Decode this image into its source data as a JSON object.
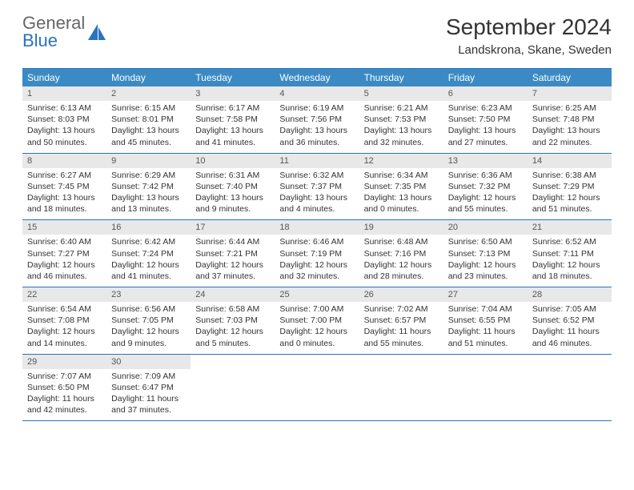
{
  "brand": {
    "line1": "General",
    "line2": "Blue"
  },
  "title": "September 2024",
  "location": "Landskrona, Skane, Sweden",
  "colors": {
    "header_bar": "#3b8ac4",
    "rule": "#2a72c0",
    "daynum_bg": "#e8e8e8",
    "text": "#333333",
    "brand_blue": "#2a72c0"
  },
  "days_of_week": [
    "Sunday",
    "Monday",
    "Tuesday",
    "Wednesday",
    "Thursday",
    "Friday",
    "Saturday"
  ],
  "weeks": [
    [
      {
        "n": "1",
        "sr": "Sunrise: 6:13 AM",
        "ss": "Sunset: 8:03 PM",
        "dl": "Daylight: 13 hours and 50 minutes."
      },
      {
        "n": "2",
        "sr": "Sunrise: 6:15 AM",
        "ss": "Sunset: 8:01 PM",
        "dl": "Daylight: 13 hours and 45 minutes."
      },
      {
        "n": "3",
        "sr": "Sunrise: 6:17 AM",
        "ss": "Sunset: 7:58 PM",
        "dl": "Daylight: 13 hours and 41 minutes."
      },
      {
        "n": "4",
        "sr": "Sunrise: 6:19 AM",
        "ss": "Sunset: 7:56 PM",
        "dl": "Daylight: 13 hours and 36 minutes."
      },
      {
        "n": "5",
        "sr": "Sunrise: 6:21 AM",
        "ss": "Sunset: 7:53 PM",
        "dl": "Daylight: 13 hours and 32 minutes."
      },
      {
        "n": "6",
        "sr": "Sunrise: 6:23 AM",
        "ss": "Sunset: 7:50 PM",
        "dl": "Daylight: 13 hours and 27 minutes."
      },
      {
        "n": "7",
        "sr": "Sunrise: 6:25 AM",
        "ss": "Sunset: 7:48 PM",
        "dl": "Daylight: 13 hours and 22 minutes."
      }
    ],
    [
      {
        "n": "8",
        "sr": "Sunrise: 6:27 AM",
        "ss": "Sunset: 7:45 PM",
        "dl": "Daylight: 13 hours and 18 minutes."
      },
      {
        "n": "9",
        "sr": "Sunrise: 6:29 AM",
        "ss": "Sunset: 7:42 PM",
        "dl": "Daylight: 13 hours and 13 minutes."
      },
      {
        "n": "10",
        "sr": "Sunrise: 6:31 AM",
        "ss": "Sunset: 7:40 PM",
        "dl": "Daylight: 13 hours and 9 minutes."
      },
      {
        "n": "11",
        "sr": "Sunrise: 6:32 AM",
        "ss": "Sunset: 7:37 PM",
        "dl": "Daylight: 13 hours and 4 minutes."
      },
      {
        "n": "12",
        "sr": "Sunrise: 6:34 AM",
        "ss": "Sunset: 7:35 PM",
        "dl": "Daylight: 13 hours and 0 minutes."
      },
      {
        "n": "13",
        "sr": "Sunrise: 6:36 AM",
        "ss": "Sunset: 7:32 PM",
        "dl": "Daylight: 12 hours and 55 minutes."
      },
      {
        "n": "14",
        "sr": "Sunrise: 6:38 AM",
        "ss": "Sunset: 7:29 PM",
        "dl": "Daylight: 12 hours and 51 minutes."
      }
    ],
    [
      {
        "n": "15",
        "sr": "Sunrise: 6:40 AM",
        "ss": "Sunset: 7:27 PM",
        "dl": "Daylight: 12 hours and 46 minutes."
      },
      {
        "n": "16",
        "sr": "Sunrise: 6:42 AM",
        "ss": "Sunset: 7:24 PM",
        "dl": "Daylight: 12 hours and 41 minutes."
      },
      {
        "n": "17",
        "sr": "Sunrise: 6:44 AM",
        "ss": "Sunset: 7:21 PM",
        "dl": "Daylight: 12 hours and 37 minutes."
      },
      {
        "n": "18",
        "sr": "Sunrise: 6:46 AM",
        "ss": "Sunset: 7:19 PM",
        "dl": "Daylight: 12 hours and 32 minutes."
      },
      {
        "n": "19",
        "sr": "Sunrise: 6:48 AM",
        "ss": "Sunset: 7:16 PM",
        "dl": "Daylight: 12 hours and 28 minutes."
      },
      {
        "n": "20",
        "sr": "Sunrise: 6:50 AM",
        "ss": "Sunset: 7:13 PM",
        "dl": "Daylight: 12 hours and 23 minutes."
      },
      {
        "n": "21",
        "sr": "Sunrise: 6:52 AM",
        "ss": "Sunset: 7:11 PM",
        "dl": "Daylight: 12 hours and 18 minutes."
      }
    ],
    [
      {
        "n": "22",
        "sr": "Sunrise: 6:54 AM",
        "ss": "Sunset: 7:08 PM",
        "dl": "Daylight: 12 hours and 14 minutes."
      },
      {
        "n": "23",
        "sr": "Sunrise: 6:56 AM",
        "ss": "Sunset: 7:05 PM",
        "dl": "Daylight: 12 hours and 9 minutes."
      },
      {
        "n": "24",
        "sr": "Sunrise: 6:58 AM",
        "ss": "Sunset: 7:03 PM",
        "dl": "Daylight: 12 hours and 5 minutes."
      },
      {
        "n": "25",
        "sr": "Sunrise: 7:00 AM",
        "ss": "Sunset: 7:00 PM",
        "dl": "Daylight: 12 hours and 0 minutes."
      },
      {
        "n": "26",
        "sr": "Sunrise: 7:02 AM",
        "ss": "Sunset: 6:57 PM",
        "dl": "Daylight: 11 hours and 55 minutes."
      },
      {
        "n": "27",
        "sr": "Sunrise: 7:04 AM",
        "ss": "Sunset: 6:55 PM",
        "dl": "Daylight: 11 hours and 51 minutes."
      },
      {
        "n": "28",
        "sr": "Sunrise: 7:05 AM",
        "ss": "Sunset: 6:52 PM",
        "dl": "Daylight: 11 hours and 46 minutes."
      }
    ],
    [
      {
        "n": "29",
        "sr": "Sunrise: 7:07 AM",
        "ss": "Sunset: 6:50 PM",
        "dl": "Daylight: 11 hours and 42 minutes."
      },
      {
        "n": "30",
        "sr": "Sunrise: 7:09 AM",
        "ss": "Sunset: 6:47 PM",
        "dl": "Daylight: 11 hours and 37 minutes."
      },
      null,
      null,
      null,
      null,
      null
    ]
  ]
}
